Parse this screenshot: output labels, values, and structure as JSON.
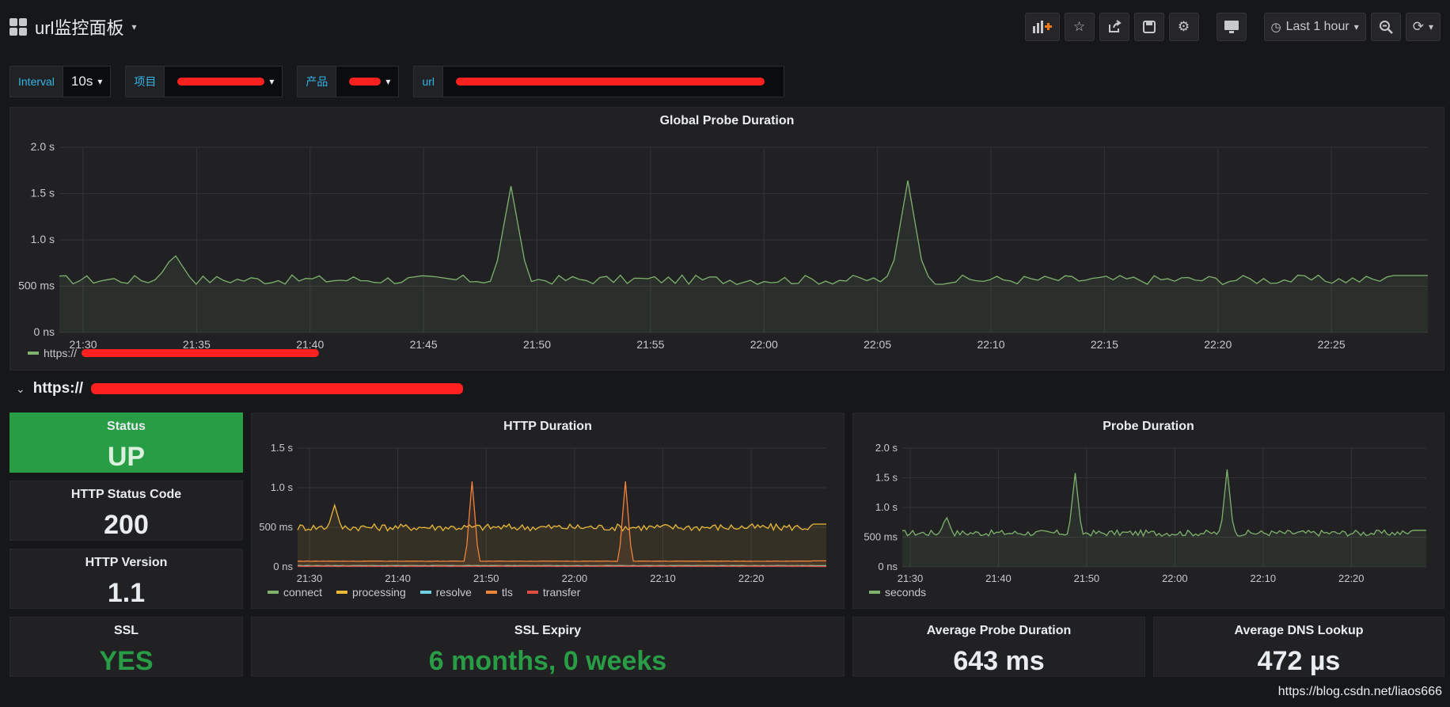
{
  "header": {
    "title": "url监控面板",
    "time_range": "Last 1 hour"
  },
  "variables": [
    {
      "label": "Interval",
      "value": "10s"
    },
    {
      "label": "项目",
      "value": ""
    },
    {
      "label": "产品",
      "value": ""
    },
    {
      "label": "url",
      "value": ""
    }
  ],
  "row": {
    "title": "https://"
  },
  "panels": {
    "global": {
      "title": "Global Probe Duration",
      "legend": "https://"
    },
    "status": {
      "title": "Status",
      "value": "UP",
      "bg": "#299c46"
    },
    "http_status": {
      "title": "HTTP Status Code",
      "value": "200"
    },
    "http_version": {
      "title": "HTTP Version",
      "value": "1.1"
    },
    "http_duration": {
      "title": "HTTP Duration"
    },
    "probe_duration": {
      "title": "Probe Duration"
    },
    "ssl": {
      "title": "SSL",
      "value": "YES",
      "color": "#299c46"
    },
    "ssl_expiry": {
      "title": "SSL Expiry",
      "value": "6 months, 0 weeks",
      "color": "#299c46"
    },
    "avg_probe": {
      "title": "Average Probe Duration",
      "value": "643 ms"
    },
    "avg_dns": {
      "title": "Average DNS Lookup",
      "value": "472 µs"
    }
  },
  "chart_data": [
    {
      "id": "global",
      "type": "area",
      "title": "Global Probe Duration",
      "x_ticks": [
        "21:30",
        "21:35",
        "21:40",
        "21:45",
        "21:50",
        "21:55",
        "22:00",
        "22:05",
        "22:10",
        "22:15",
        "22:20",
        "22:25"
      ],
      "y_ticks": [
        "0 ns",
        "500 ms",
        "1.0 s",
        "1.5 s",
        "2.0 s"
      ],
      "ylim": [
        0,
        2.0
      ],
      "series": [
        {
          "name": "https://",
          "color": "#7eb26d",
          "baseline": 0.57,
          "spikes": [
            [
              0.084,
              0.85
            ],
            [
              0.33,
              1.58
            ],
            [
              0.62,
              1.64
            ]
          ]
        }
      ]
    },
    {
      "id": "http",
      "type": "area",
      "title": "HTTP Duration",
      "x_ticks": [
        "21:30",
        "21:40",
        "21:50",
        "22:00",
        "22:10",
        "22:20"
      ],
      "y_ticks": [
        "0 ns",
        "500 ms",
        "1.0 s",
        "1.5 s"
      ],
      "ylim": [
        0,
        1.5
      ],
      "series": [
        {
          "name": "connect",
          "color": "#7eb26d",
          "baseline": 0.015,
          "spikes": []
        },
        {
          "name": "processing",
          "color": "#eab839",
          "baseline": 0.5,
          "spikes": [
            [
              0.07,
              0.78
            ]
          ]
        },
        {
          "name": "resolve",
          "color": "#6ed0e0",
          "baseline": 0.01,
          "spikes": []
        },
        {
          "name": "tls",
          "color": "#ef843c",
          "baseline": 0.07,
          "spikes": [
            [
              0.33,
              1.08
            ],
            [
              0.62,
              1.08
            ]
          ]
        },
        {
          "name": "transfer",
          "color": "#e24d42",
          "baseline": 0.005,
          "spikes": []
        }
      ]
    },
    {
      "id": "probe",
      "type": "area",
      "title": "Probe Duration",
      "x_ticks": [
        "21:30",
        "21:40",
        "21:50",
        "22:00",
        "22:10",
        "22:20"
      ],
      "y_ticks": [
        "0 ns",
        "500 ms",
        "1.0 s",
        "1.5 s",
        "2.0 s"
      ],
      "ylim": [
        0,
        2.0
      ],
      "series": [
        {
          "name": "seconds",
          "color": "#7eb26d",
          "baseline": 0.57,
          "spikes": [
            [
              0.084,
              0.85
            ],
            [
              0.33,
              1.58
            ],
            [
              0.62,
              1.64
            ]
          ]
        }
      ]
    }
  ],
  "watermark": "https://blog.csdn.net/liaos666"
}
